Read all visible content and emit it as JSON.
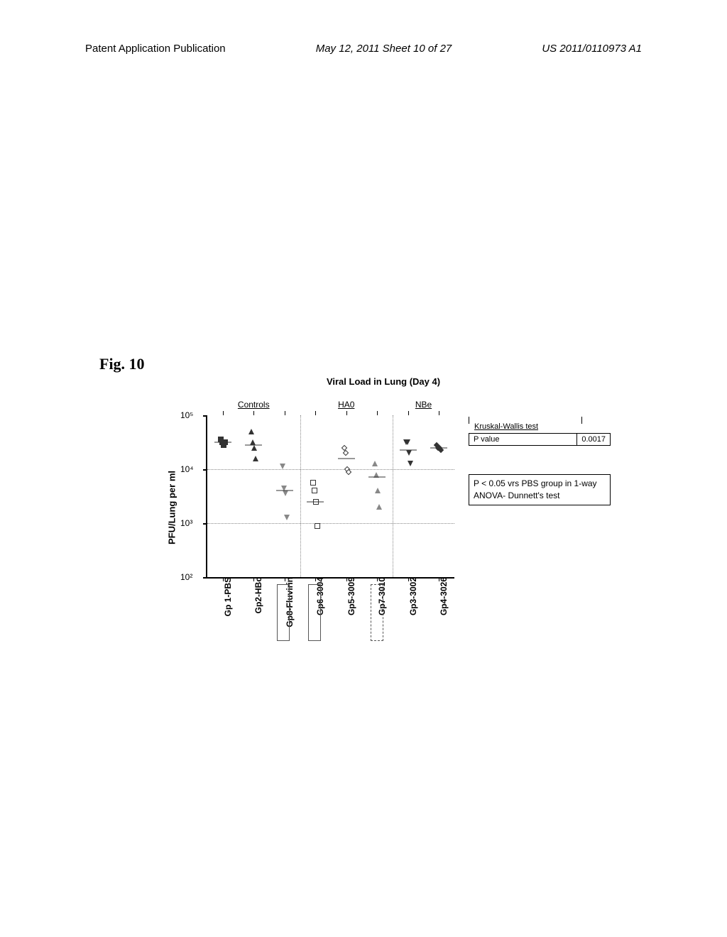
{
  "header": {
    "left": "Patent Application Publication",
    "center": "May 12, 2011  Sheet 10 of 27",
    "right": "US 2011/0110973 A1"
  },
  "figure_label": "Fig. 10",
  "chart": {
    "title": "Viral Load in Lung (Day 4)",
    "y_label": "PFU/Lung per ml",
    "y_ticks": [
      {
        "exp": 2,
        "label": "10²",
        "pos": 100
      },
      {
        "exp": 3,
        "label": "10³",
        "pos": 66.67
      },
      {
        "exp": 4,
        "label": "10⁴",
        "pos": 33.33
      },
      {
        "exp": 5,
        "label": "10⁵",
        "pos": 0
      }
    ],
    "gridlines_y": [
      33.33,
      66.67
    ],
    "vlines_x": [
      37.5,
      75
    ],
    "group_headers": [
      {
        "label": "Controls",
        "x": 18.75
      },
      {
        "label": "HA0",
        "x": 56.25
      },
      {
        "label": "NBe",
        "x": 87.5
      }
    ],
    "groups": [
      {
        "label": "Gp 1-PBS",
        "x": 6.25,
        "marker": "square-filled",
        "y": [
          4.55,
          4.5,
          4.45,
          4.5
        ],
        "mean_y": 4.5,
        "box": null
      },
      {
        "label": "Gp2-HBc",
        "x": 18.75,
        "marker": "tri-up-filled",
        "y": [
          4.7,
          4.5,
          4.4,
          4.2
        ],
        "mean_y": 4.45,
        "box": null
      },
      {
        "label": "Gp8-Fluvirin",
        "x": 31.25,
        "marker": "tri-down-open",
        "y": [
          4.05,
          3.65,
          3.55,
          3.1
        ],
        "mean_y": 3.6,
        "box": "solid"
      },
      {
        "label": "Gp6-3004",
        "x": 43.75,
        "marker": "square-open",
        "y": [
          3.75,
          3.6,
          3.4,
          2.95
        ],
        "mean_y": 3.4,
        "box": "solid"
      },
      {
        "label": "Gp5-3009",
        "x": 56.25,
        "marker": "diamond-open",
        "y": [
          4.4,
          4.3,
          4.0,
          3.95
        ],
        "mean_y": 4.2,
        "box": null
      },
      {
        "label": "Gp7-3010",
        "x": 68.75,
        "marker": "tri-up-open",
        "y": [
          4.1,
          3.9,
          3.6,
          3.3
        ],
        "mean_y": 3.85,
        "box": "dashed"
      },
      {
        "label": "Gp3-3002",
        "x": 81.25,
        "marker": "tri-down-filled",
        "y": [
          4.5,
          4.5,
          4.3,
          4.1
        ],
        "mean_y": 4.35,
        "box": null
      },
      {
        "label": "Gp4-3026",
        "x": 93.75,
        "marker": "diamond-filled",
        "y": [
          4.45,
          4.4,
          4.4,
          4.35
        ],
        "mean_y": 4.4,
        "box": null
      }
    ],
    "kruskal": {
      "label": "Kruskal-Wallis test",
      "p_label": "P value",
      "p_value": "0.0017"
    },
    "anova_note": "P < 0.05 vrs  PBS group in 1-way ANOVA- Dunnett's test"
  }
}
